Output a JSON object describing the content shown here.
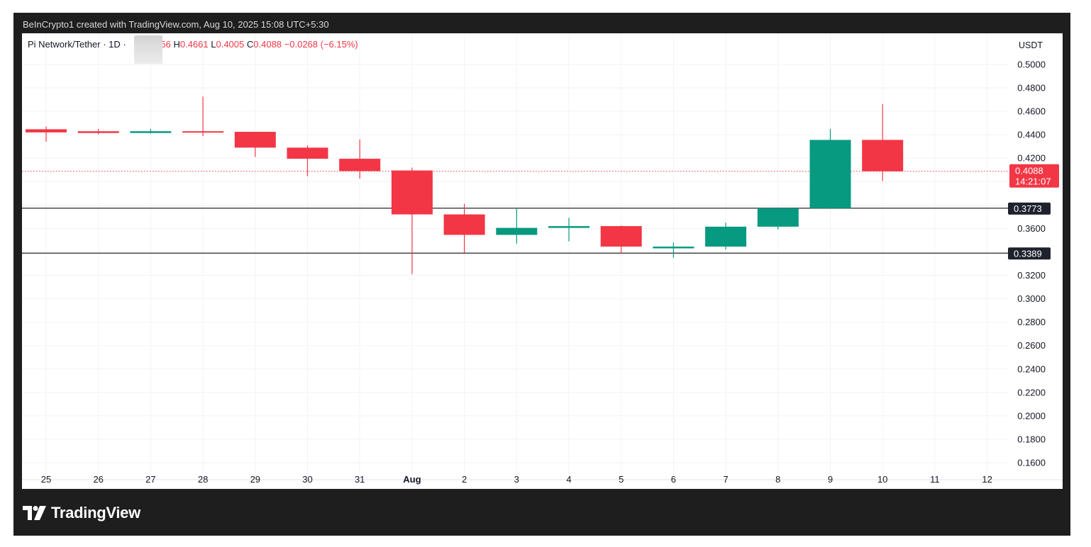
{
  "header": {
    "credit": "BeInCrypto1 created with TradingView.com, Aug 10, 2025 15:08 UTC+5:30"
  },
  "legend": {
    "symbol": "Pi Network/Tether · 1D ·",
    "open_label": "O",
    "open": "0.4356",
    "high_label": "H",
    "high": "0.4661",
    "low_label": "L",
    "low": "0.4005",
    "close_label": "C",
    "close": "0.4088",
    "change": "−0.0268 (−6.15%)"
  },
  "axis": {
    "currency": "USDT"
  },
  "brand": {
    "name": "TradingView"
  },
  "colors": {
    "up": "#089981",
    "down": "#f23645",
    "line": "#3a3a3a",
    "grid": "#f0f3fa"
  },
  "chart_data": {
    "type": "candlestick",
    "title": "Pi Network/Tether · 1D",
    "ylabel": "USDT",
    "ylim": [
      0.145,
      0.515
    ],
    "y_ticks": [
      "0.5000",
      "0.4800",
      "0.4600",
      "0.4400",
      "0.4200",
      "0.3600",
      "0.3200",
      "0.3000",
      "0.2800",
      "0.2600",
      "0.2400",
      "0.2200",
      "0.2000",
      "0.1800",
      "0.1600"
    ],
    "x_labels": [
      "25",
      "26",
      "27",
      "28",
      "29",
      "30",
      "31",
      "Aug",
      "2",
      "3",
      "4",
      "5",
      "6",
      "7",
      "8",
      "9",
      "10",
      "11",
      "12"
    ],
    "candles": [
      {
        "date": "25",
        "open": 0.4447,
        "high": 0.447,
        "low": 0.434,
        "close": 0.442
      },
      {
        "date": "26",
        "open": 0.443,
        "high": 0.445,
        "low": 0.4405,
        "close": 0.4415
      },
      {
        "date": "27",
        "open": 0.4415,
        "high": 0.445,
        "low": 0.441,
        "close": 0.443
      },
      {
        "date": "28",
        "open": 0.443,
        "high": 0.4725,
        "low": 0.439,
        "close": 0.4425
      },
      {
        "date": "29",
        "open": 0.4425,
        "high": 0.4425,
        "low": 0.421,
        "close": 0.429
      },
      {
        "date": "30",
        "open": 0.429,
        "high": 0.431,
        "low": 0.4045,
        "close": 0.4195
      },
      {
        "date": "31",
        "open": 0.4195,
        "high": 0.436,
        "low": 0.4025,
        "close": 0.409
      },
      {
        "date": "Aug",
        "open": 0.4095,
        "high": 0.412,
        "low": 0.321,
        "close": 0.372
      },
      {
        "date": "2",
        "open": 0.372,
        "high": 0.381,
        "low": 0.339,
        "close": 0.3545
      },
      {
        "date": "3",
        "open": 0.3545,
        "high": 0.3775,
        "low": 0.347,
        "close": 0.3605
      },
      {
        "date": "4",
        "open": 0.3605,
        "high": 0.369,
        "low": 0.349,
        "close": 0.362
      },
      {
        "date": "5",
        "open": 0.362,
        "high": 0.3625,
        "low": 0.3385,
        "close": 0.3445
      },
      {
        "date": "6",
        "open": 0.343,
        "high": 0.348,
        "low": 0.335,
        "close": 0.3445
      },
      {
        "date": "7",
        "open": 0.3445,
        "high": 0.365,
        "low": 0.342,
        "close": 0.3615
      },
      {
        "date": "8",
        "open": 0.3615,
        "high": 0.378,
        "low": 0.359,
        "close": 0.3773
      },
      {
        "date": "9",
        "open": 0.3773,
        "high": 0.445,
        "low": 0.3773,
        "close": 0.4356
      },
      {
        "date": "10",
        "open": 0.4356,
        "high": 0.4661,
        "low": 0.4005,
        "close": 0.4088
      }
    ],
    "levels": [
      {
        "value": 0.3773,
        "label": "0.3773"
      },
      {
        "value": 0.3389,
        "label": "0.3389"
      }
    ],
    "last_price": {
      "value": 0.4088,
      "label": "0.4088",
      "countdown": "14:21:07"
    },
    "grid": true
  }
}
